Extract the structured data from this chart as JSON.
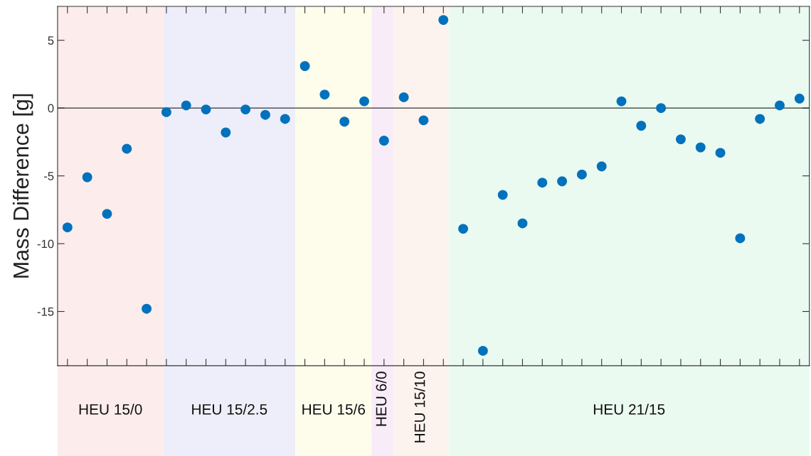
{
  "chart_data": {
    "type": "scatter",
    "ylabel": "Mass Difference [g]",
    "categories": [
      null,
      null,
      null,
      null,
      null,
      null,
      null,
      null,
      null,
      null,
      null,
      null,
      null,
      null,
      null,
      null,
      null,
      null,
      null,
      null,
      null,
      null,
      null,
      null,
      null,
      null,
      null,
      null,
      null,
      null,
      null,
      null,
      null,
      null,
      null,
      null,
      null,
      null
    ],
    "series": [
      {
        "color": "#0072bd",
        "values": [
          -8.8,
          -5.1,
          -7.8,
          -3.0,
          -14.8,
          -0.3,
          0.2,
          -0.1,
          -1.8,
          -0.1,
          -0.5,
          -0.8,
          3.1,
          1.0,
          -1.0,
          0.5,
          -2.4,
          0.8,
          -0.9,
          6.5,
          -8.9,
          -17.9,
          -6.4,
          -8.5,
          -5.5,
          -5.4,
          -4.9,
          -4.3,
          0.5,
          -1.3,
          0.0,
          -2.3,
          -2.9,
          -3.3,
          -9.6,
          -0.8,
          0.2,
          0.7
        ]
      }
    ],
    "marker": "circle",
    "ylim": [
      -19,
      7.5
    ],
    "yticks": [
      -15,
      -10,
      -5,
      0,
      5
    ],
    "tick_labels": "y",
    "ref_lines": [
      {
        "axis": "y",
        "value": 0,
        "color": "#333333",
        "line_style": "solid"
      }
    ],
    "annotations": [
      "HEU 15/0",
      "HEU 15/2.5",
      "HEU 15/6",
      "HEU 6/0",
      "HEU 15/10",
      "HEU 21/15"
    ]
  }
}
